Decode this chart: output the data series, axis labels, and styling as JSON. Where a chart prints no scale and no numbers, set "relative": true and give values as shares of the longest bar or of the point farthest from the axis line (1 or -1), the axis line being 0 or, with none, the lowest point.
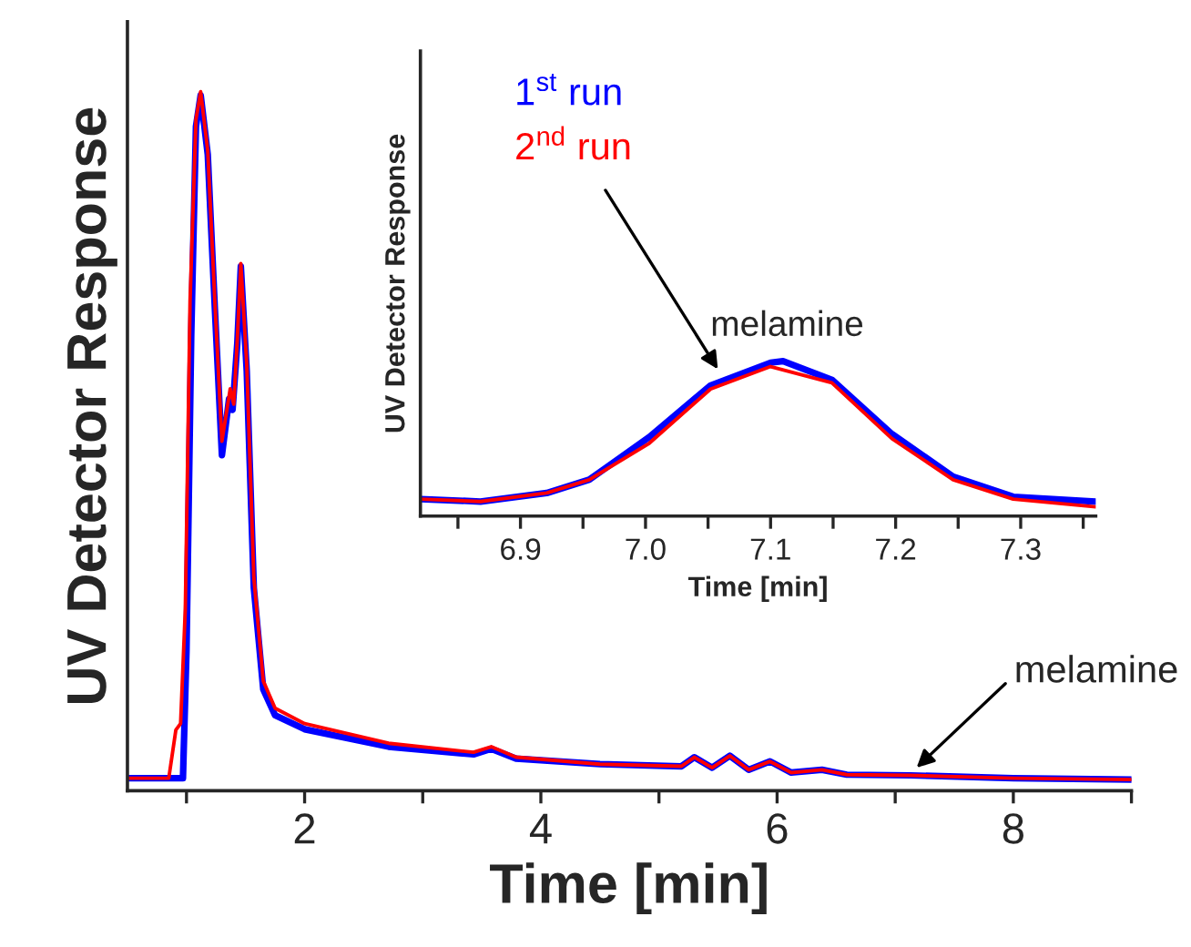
{
  "chart_data": [
    {
      "type": "line",
      "xlabel": "Time [min]",
      "ylabel": "UV Detector Response",
      "relative": true,
      "xlim": [
        0.5,
        9
      ],
      "xticks": [
        {
          "value": 1,
          "label": null
        },
        2,
        {
          "value": 3,
          "label": null
        },
        4,
        {
          "value": 5,
          "label": null
        },
        6,
        {
          "value": 7,
          "label": null
        },
        8,
        {
          "value": 9,
          "label": null
        }
      ],
      "tick_labels": "x",
      "grid": false,
      "legend": false,
      "marker": "none",
      "line_style": "solid",
      "series": [
        {
          "color": "#0000ff",
          "x": [
            0.5,
            0.97,
            1.0,
            1.04,
            1.08,
            1.12,
            1.18,
            1.24,
            1.3,
            1.36,
            1.39,
            1.43,
            1.46,
            1.51,
            1.57,
            1.65,
            1.75,
            2.0,
            2.71,
            3.43,
            3.58,
            3.79,
            4.5,
            5.19,
            5.3,
            5.45,
            5.6,
            5.76,
            5.94,
            6.12,
            6.38,
            6.59,
            7.13,
            8.0,
            9.0
          ],
          "values": [
            0.018,
            0.018,
            0.2,
            0.65,
            0.95,
            0.995,
            0.91,
            0.69,
            0.48,
            0.56,
            0.545,
            0.64,
            0.75,
            0.6,
            0.29,
            0.145,
            0.108,
            0.088,
            0.063,
            0.052,
            0.06,
            0.046,
            0.038,
            0.035,
            0.048,
            0.033,
            0.05,
            0.03,
            0.042,
            0.026,
            0.03,
            0.023,
            0.022,
            0.018,
            0.016
          ]
        },
        {
          "color": "#ff0000",
          "x": [
            0.5,
            0.85,
            0.91,
            0.95,
            0.99,
            1.03,
            1.08,
            1.12,
            1.18,
            1.24,
            1.3,
            1.37,
            1.4,
            1.43,
            1.46,
            1.51,
            1.57,
            1.65,
            1.75,
            2.0,
            2.71,
            3.43,
            3.58,
            3.79,
            4.5,
            5.19,
            5.3,
            5.45,
            5.6,
            5.76,
            5.94,
            6.12,
            6.38,
            6.59,
            7.13,
            8.0,
            9.0
          ],
          "values": [
            0.018,
            0.018,
            0.087,
            0.096,
            0.26,
            0.7,
            0.96,
            1.0,
            0.915,
            0.7,
            0.5,
            0.575,
            0.553,
            0.645,
            0.754,
            0.61,
            0.305,
            0.157,
            0.118,
            0.096,
            0.068,
            0.055,
            0.063,
            0.048,
            0.038,
            0.035,
            0.048,
            0.033,
            0.05,
            0.03,
            0.042,
            0.026,
            0.03,
            0.023,
            0.022,
            0.018,
            0.016
          ]
        }
      ],
      "annotations": [
        {
          "text": "melamine",
          "x": 7.15,
          "y": 0.028
        }
      ]
    },
    {
      "type": "line",
      "xlabel": "Time [min]",
      "ylabel": "UV Detector Response",
      "relative": true,
      "xlim": [
        6.82,
        7.36
      ],
      "xticks": [
        {
          "value": 6.85,
          "label": null
        },
        6.9,
        {
          "value": 6.95,
          "label": null
        },
        {
          "value": 7.0,
          "label": "7.0"
        },
        {
          "value": 7.05,
          "label": null
        },
        7.1,
        {
          "value": 7.15,
          "label": null
        },
        7.2,
        {
          "value": 7.25,
          "label": null
        },
        7.3,
        {
          "value": 7.35,
          "label": null
        }
      ],
      "tick_labels": "x",
      "grid": false,
      "legend": "top left",
      "marker": "none",
      "line_style": "solid",
      "series": [
        {
          "name": "1$^{st}$ run",
          "color": "#0000ff",
          "x": [
            6.82,
            6.868,
            6.921,
            6.955,
            7.003,
            7.052,
            7.1,
            7.11,
            7.149,
            7.197,
            7.246,
            7.294,
            7.36
          ],
          "values": [
            0.11,
            0.094,
            0.149,
            0.235,
            0.51,
            0.843,
            0.99,
            1.0,
            0.88,
            0.53,
            0.255,
            0.125,
            0.094
          ]
        },
        {
          "name": "2$^{nd}$ run",
          "color": "#ff0000",
          "x": [
            6.82,
            6.868,
            6.921,
            6.955,
            7.003,
            7.052,
            7.1,
            7.149,
            7.197,
            7.246,
            7.294,
            7.36
          ],
          "values": [
            0.11,
            0.094,
            0.149,
            0.235,
            0.47,
            0.82,
            0.965,
            0.86,
            0.5,
            0.235,
            0.11,
            0.06
          ]
        }
      ],
      "annotations": [
        {
          "text": "melamine",
          "x": 7.06,
          "y": 0.92
        }
      ]
    }
  ]
}
